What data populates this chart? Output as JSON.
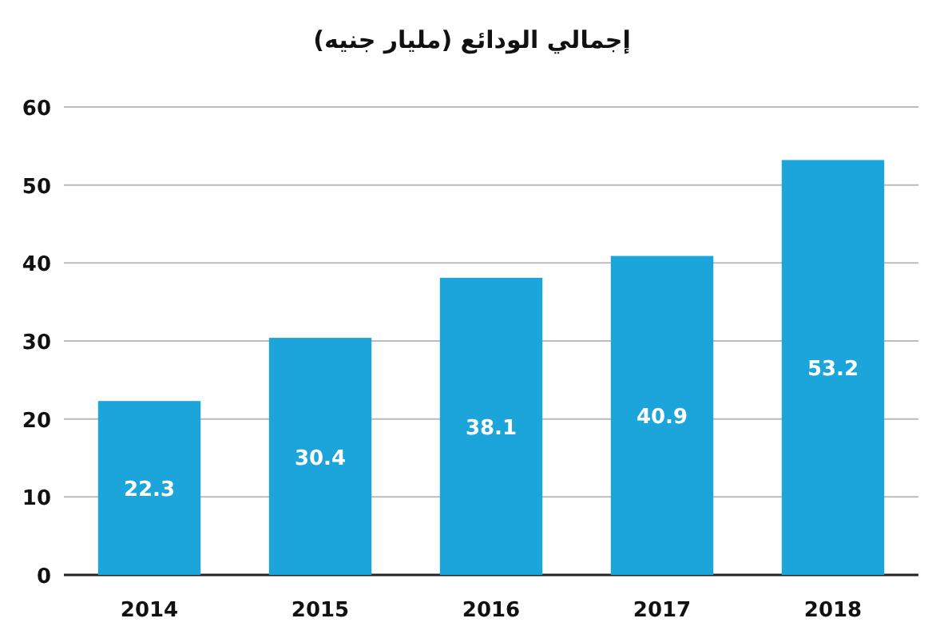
{
  "chart_data": {
    "type": "bar",
    "title": "إجمالي الودائع (مليار جنيه)",
    "categories": [
      "2014",
      "2015",
      "2016",
      "2017",
      "2018"
    ],
    "values": [
      22.3,
      30.4,
      38.1,
      40.9,
      53.2
    ],
    "color": "#1ba5da",
    "ylim": [
      0,
      60
    ],
    "yticks": [
      0,
      10,
      20,
      30,
      40,
      50,
      60
    ],
    "grid": "y",
    "data_labels": true
  }
}
